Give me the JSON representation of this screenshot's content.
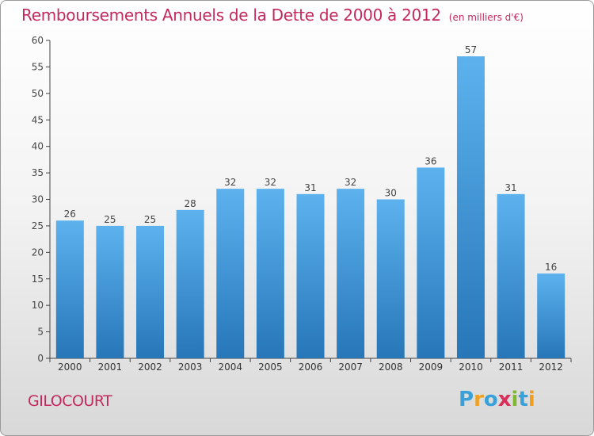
{
  "header": {
    "title": "Remboursements Annuels de la Dette de 2000 à 2012",
    "unit": "(en milliers d'€)"
  },
  "footer": {
    "commune": "GILOCOURT",
    "logo_letters": [
      "P",
      "r",
      "o",
      "x",
      "i",
      "t",
      "i"
    ],
    "logo_colors": [
      "#3aa0d8",
      "#f0a020",
      "#3aa0d8",
      "#d8305a",
      "#80b830",
      "#3aa0d8",
      "#f0a020"
    ]
  },
  "colors": {
    "title": "#c3295e",
    "bar_top": "#5db2ee",
    "bar_bottom": "#2676b8",
    "axis": "#444444"
  },
  "chart_data": {
    "type": "bar",
    "title": "Remboursements Annuels de la Dette de 2000 à 2012",
    "categories": [
      "2000",
      "2001",
      "2002",
      "2003",
      "2004",
      "2005",
      "2006",
      "2007",
      "2008",
      "2009",
      "2010",
      "2011",
      "2012"
    ],
    "values": [
      26,
      25,
      25,
      28,
      32,
      32,
      31,
      32,
      30,
      36,
      57,
      31,
      16
    ],
    "ylim": [
      0,
      60
    ],
    "yticks": [
      0,
      5,
      10,
      15,
      20,
      25,
      30,
      35,
      40,
      45,
      50,
      55,
      60
    ],
    "grid": false,
    "data_labels": true
  }
}
